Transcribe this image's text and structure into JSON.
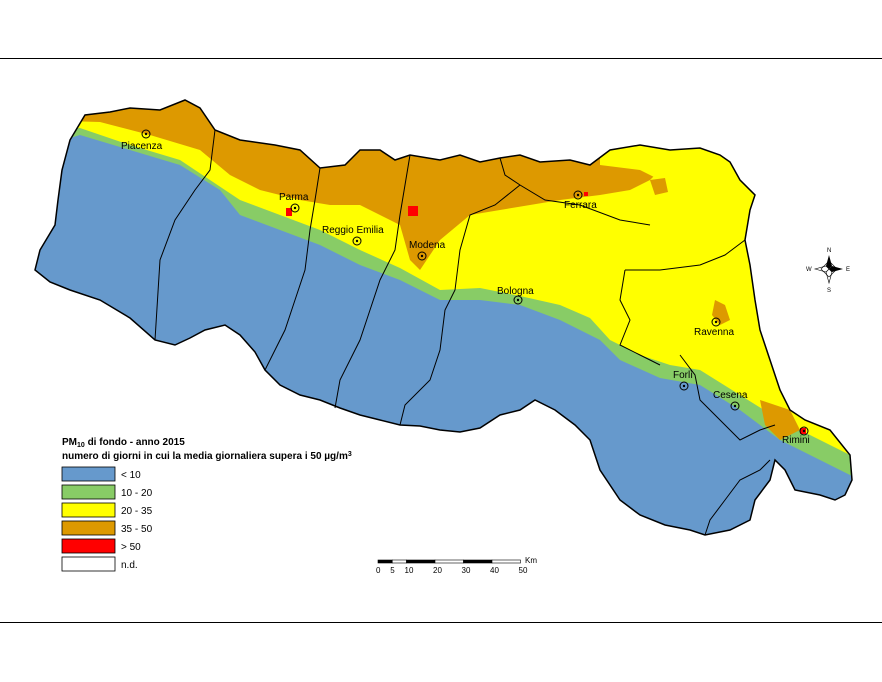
{
  "legend": {
    "title_main": "PM",
    "title_sub": "10",
    "title_rest": " di fondo - anno 2015",
    "subtitle_prefix": "numero di giorni in cui la media giornaliera supera i 50 µg/m",
    "subtitle_sup": "3",
    "classes": [
      {
        "label": "< 10",
        "color": "#6699cc"
      },
      {
        "label": "10 - 20",
        "color": "#88cc66"
      },
      {
        "label": "20 - 35",
        "color": "#ffff00"
      },
      {
        "label": "35 - 50",
        "color": "#dd9900"
      },
      {
        "label": "> 50",
        "color": "#ff0000"
      },
      {
        "label": "n.d.",
        "color": "#ffffff"
      }
    ]
  },
  "cities": [
    {
      "name": "Piacenza"
    },
    {
      "name": "Parma"
    },
    {
      "name": "Reggio Emilia"
    },
    {
      "name": "Modena"
    },
    {
      "name": "Ferrara"
    },
    {
      "name": "Bologna"
    },
    {
      "name": "Ravenna"
    },
    {
      "name": "Forlì"
    },
    {
      "name": "Cesena"
    },
    {
      "name": "Rimini"
    }
  ],
  "scale_bar": {
    "unit": "Km",
    "ticks": [
      "0",
      "5",
      "10",
      "20",
      "30",
      "40",
      "50"
    ]
  },
  "compass": {
    "n": "N",
    "s": "S",
    "e": "E",
    "w": "W"
  }
}
